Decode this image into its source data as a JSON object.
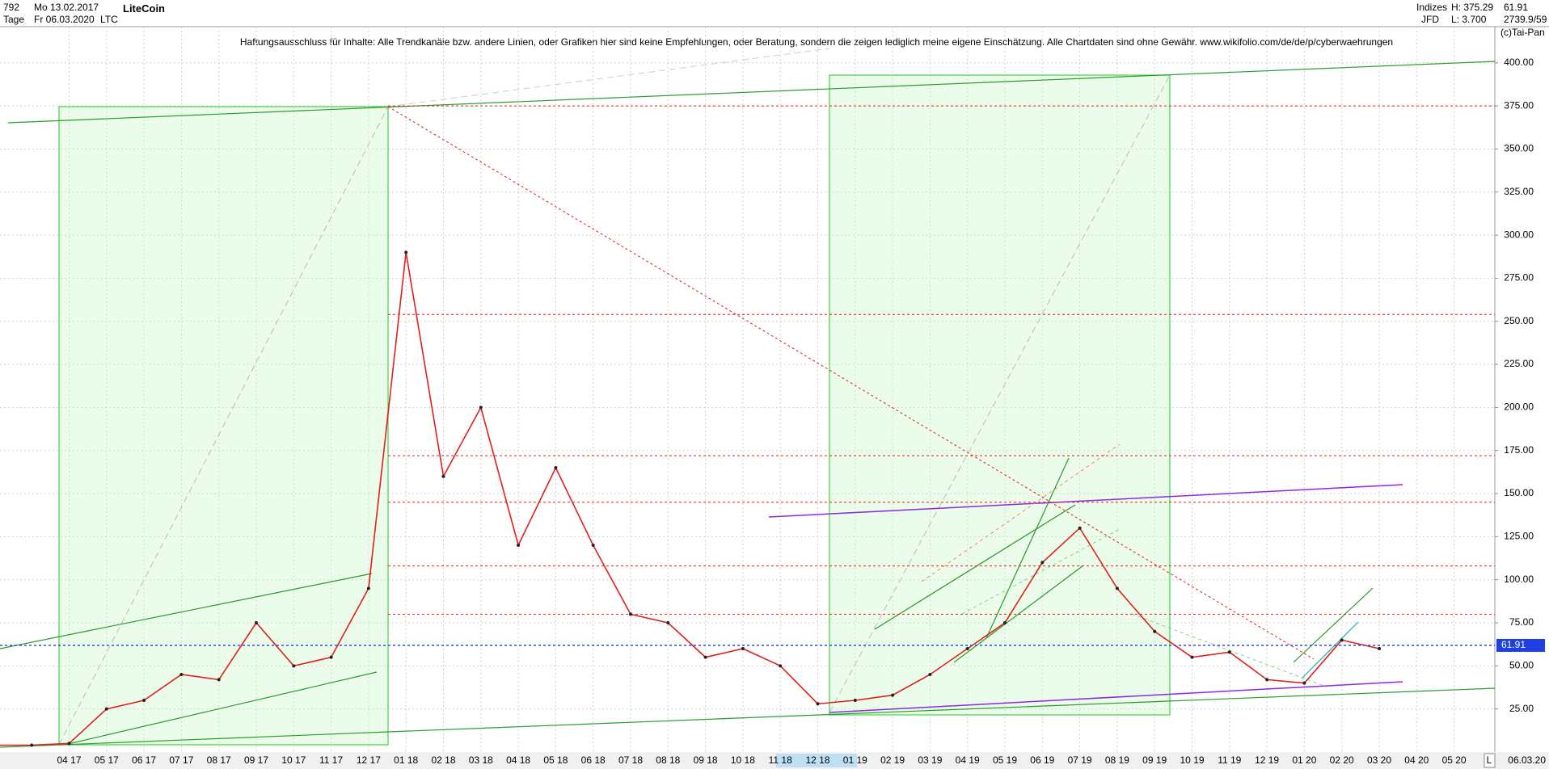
{
  "header": {
    "count": "792",
    "start_date": "Mo 13.02.2017",
    "period": "Tage",
    "end_date": "Fr 06.03.2020",
    "symbol": "LTC",
    "name": "LiteCoin",
    "market": "Indizes",
    "broker": "JFD",
    "high": "H: 375.29",
    "low": "L: 3.700",
    "last": "61.91",
    "stats": "2739.9/59",
    "copyright": "(c)Tai-Pan"
  },
  "chart_data": {
    "type": "line",
    "subtitle": "Haftungsausschluss für Inhalte: Alle Trendkanäle bzw. andere Linien, oder Grafiken hier sind keine Empfehlungen, oder Beratung, sondern die zeigen lediglich meine eigene Einschätzung. Alle Chartdaten sind ohne Gewähr.  www.wikifolio.com/de/de/p/cyberwaehrungen",
    "categories": [
      null,
      null,
      "04 17",
      "05 17",
      "06 17",
      "07 17",
      "08 17",
      "09 17",
      "10 17",
      "11 17",
      "12 17",
      "01 18",
      "02 18",
      "03 18",
      "04 18",
      "05 18",
      "06 18",
      "07 18",
      "08 18",
      "09 18",
      "10 18",
      "11 18",
      "12 18",
      "01 19",
      "02 19",
      "03 19",
      "04 19",
      "05 19",
      "06 19",
      "07 19",
      "08 19",
      "09 19",
      "10 19",
      "11 19",
      "12 19",
      "01 20",
      "02 20",
      "03 20",
      "04 20",
      "05 20"
    ],
    "values": [
      4,
      4,
      5,
      25,
      30,
      45,
      42,
      75,
      50,
      55,
      95,
      290,
      160,
      200,
      120,
      165,
      120,
      80,
      75,
      55,
      60,
      50,
      28,
      30,
      33,
      45,
      60,
      75,
      110,
      130,
      95,
      70,
      55,
      58,
      42,
      40,
      65,
      60,
      null,
      null
    ],
    "color": "#e0201c",
    "ylim": [
      0,
      421
    ],
    "yticks": [
      {
        "value": 25,
        "label": "25.00"
      },
      {
        "value": 50,
        "label": "50.00"
      },
      {
        "value": 75,
        "label": "75.00"
      },
      {
        "value": 100,
        "label": "100.00"
      },
      {
        "value": 125,
        "label": "125.00"
      },
      {
        "value": 150,
        "label": "150.00"
      },
      {
        "value": 175,
        "label": "175.00"
      },
      {
        "value": 200,
        "label": "200.00"
      },
      {
        "value": 225,
        "label": "225.00"
      },
      {
        "value": 250,
        "label": "250.00"
      },
      {
        "value": 275,
        "label": "275.00"
      },
      {
        "value": 300,
        "label": "300.00"
      },
      {
        "value": 325,
        "label": "325.00"
      },
      {
        "value": 350,
        "label": "350.00"
      },
      {
        "value": 375,
        "label": "375.00"
      },
      {
        "value": 400,
        "label": "400.00"
      }
    ],
    "grid": true,
    "current_price": {
      "value": 61.91,
      "label": "61.91"
    },
    "levels": [
      375,
      254,
      172,
      145,
      108,
      80
    ],
    "footer": {
      "scale": "L",
      "date": "06.03.20"
    }
  }
}
